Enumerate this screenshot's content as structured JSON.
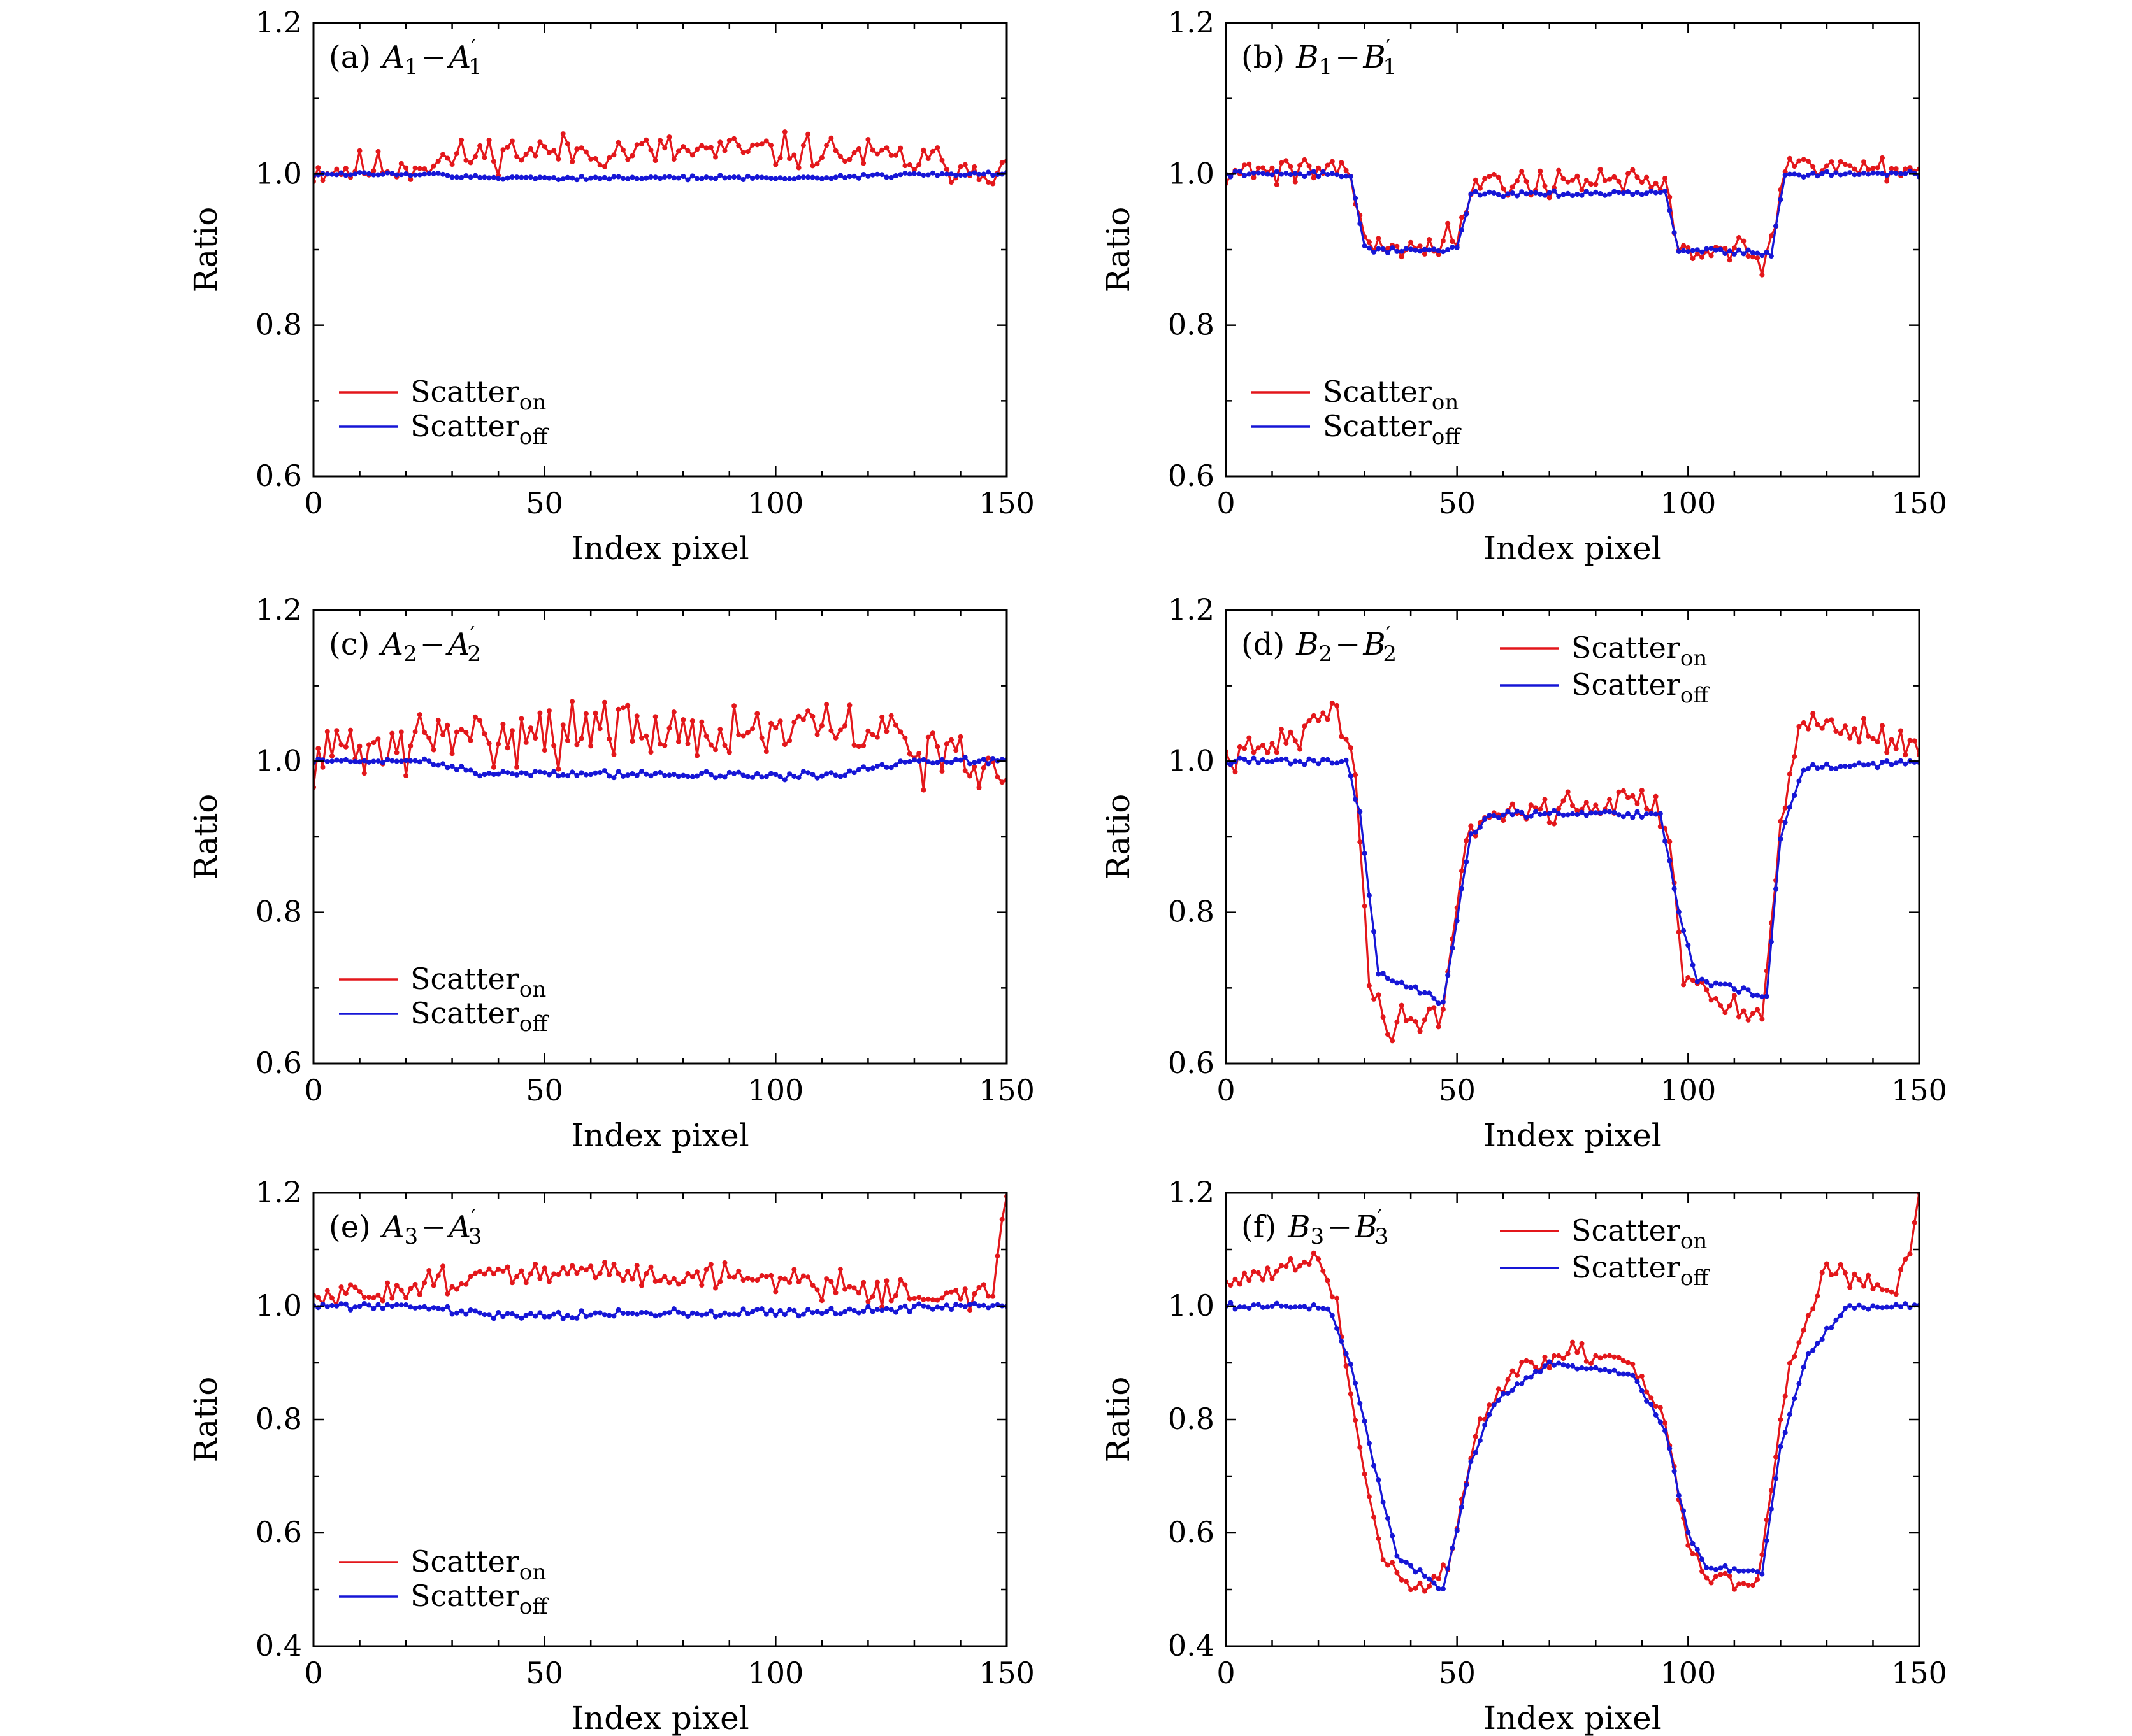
{
  "colors": {
    "scatter_on": "#e3171b",
    "scatter_off": "#1616d6",
    "axis": "#000000"
  },
  "legend": {
    "on_base": "Scatter",
    "on_sub": "on",
    "off_base": "Scatter",
    "off_sub": "off"
  },
  "chart_data": [
    {
      "id": "a",
      "type": "line",
      "label": "(a)",
      "pair": [
        "A",
        "1"
      ],
      "legend_position": "bottom-left",
      "xlabel": "Index pixel",
      "ylabel": "Ratio",
      "xlim": [
        0,
        150
      ],
      "ylim": [
        0.6,
        1.2
      ],
      "xticks": [
        0,
        50,
        100,
        150
      ],
      "yticks": [
        "0.6",
        "0.8",
        "1.0",
        "1.2"
      ],
      "series": [
        {
          "name": "Scatter_on",
          "kind": "noisy",
          "breakpoints": [
            [
              0,
              1.005
            ],
            [
              20,
              1.01
            ],
            [
              40,
              1.03
            ],
            [
              70,
              1.03
            ],
            [
              110,
              1.03
            ],
            [
              150,
              1.005
            ]
          ],
          "noise": 0.035,
          "seed": 11
        },
        {
          "name": "Scatter_off",
          "kind": "noisy",
          "breakpoints": [
            [
              0,
              1.0
            ],
            [
              25,
              1.0
            ],
            [
              35,
              0.995
            ],
            [
              110,
              0.995
            ],
            [
              130,
              1.0
            ],
            [
              150,
              1.0
            ]
          ],
          "noise": 0.004,
          "seed": 12
        }
      ]
    },
    {
      "id": "b",
      "type": "line",
      "label": "(b)",
      "pair": [
        "B",
        "1"
      ],
      "legend_position": "bottom-left",
      "xlabel": "Index pixel",
      "ylabel": "Ratio",
      "xlim": [
        0,
        150
      ],
      "ylim": [
        0.6,
        1.2
      ],
      "xticks": [
        0,
        50,
        100,
        150
      ],
      "yticks": [
        "0.6",
        "0.8",
        "1.0",
        "1.2"
      ],
      "series": [
        {
          "name": "Scatter_on",
          "kind": "noisy",
          "breakpoints": [
            [
              0,
              1.005
            ],
            [
              27,
              1.01
            ],
            [
              30,
              0.905
            ],
            [
              50,
              0.91
            ],
            [
              53,
              0.99
            ],
            [
              95,
              0.99
            ],
            [
              98,
              0.9
            ],
            [
              118,
              0.89
            ],
            [
              121,
              1.01
            ],
            [
              150,
              1.01
            ]
          ],
          "noise": 0.03,
          "seed": 21
        },
        {
          "name": "Scatter_off",
          "kind": "noisy",
          "breakpoints": [
            [
              0,
              1.0
            ],
            [
              27,
              1.0
            ],
            [
              30,
              0.9
            ],
            [
              50,
              0.9
            ],
            [
              53,
              0.975
            ],
            [
              95,
              0.975
            ],
            [
              98,
              0.9
            ],
            [
              118,
              0.895
            ],
            [
              121,
              1.0
            ],
            [
              150,
              1.0
            ]
          ],
          "noise": 0.006,
          "seed": 22
        }
      ]
    },
    {
      "id": "c",
      "type": "line",
      "label": "(c)",
      "pair": [
        "A",
        "2"
      ],
      "legend_position": "bottom-left",
      "xlabel": "Index pixel",
      "ylabel": "Ratio",
      "xlim": [
        0,
        150
      ],
      "ylim": [
        0.6,
        1.2
      ],
      "xticks": [
        0,
        50,
        100,
        150
      ],
      "yticks": [
        "0.6",
        "0.8",
        "1.0",
        "1.2"
      ],
      "series": [
        {
          "name": "Scatter_on",
          "kind": "noisy",
          "breakpoints": [
            [
              0,
              1.01
            ],
            [
              20,
              1.02
            ],
            [
              40,
              1.04
            ],
            [
              80,
              1.04
            ],
            [
              120,
              1.04
            ],
            [
              140,
              1.0
            ],
            [
              150,
              0.97
            ]
          ],
          "noise": 0.06,
          "seed": 31
        },
        {
          "name": "Scatter_off",
          "kind": "noisy",
          "breakpoints": [
            [
              0,
              1.0
            ],
            [
              25,
              1.0
            ],
            [
              35,
              0.985
            ],
            [
              110,
              0.98
            ],
            [
              130,
              1.0
            ],
            [
              150,
              1.0
            ]
          ],
          "noise": 0.007,
          "seed": 32
        }
      ]
    },
    {
      "id": "d",
      "type": "line",
      "label": "(d)",
      "pair": [
        "B",
        "2"
      ],
      "legend_position": "top-center",
      "xlabel": "Index pixel",
      "ylabel": "Ratio",
      "xlim": [
        0,
        150
      ],
      "ylim": [
        0.6,
        1.2
      ],
      "xticks": [
        0,
        50,
        100,
        150
      ],
      "yticks": [
        "0.6",
        "0.8",
        "1.0",
        "1.2"
      ],
      "series": [
        {
          "name": "Scatter_on",
          "kind": "noisy",
          "breakpoints": [
            [
              0,
              1.0
            ],
            [
              15,
              1.03
            ],
            [
              24,
              1.07
            ],
            [
              28,
              1.0
            ],
            [
              31,
              0.7
            ],
            [
              35,
              0.65
            ],
            [
              47,
              0.67
            ],
            [
              52,
              0.9
            ],
            [
              56,
              0.93
            ],
            [
              92,
              0.95
            ],
            [
              96,
              0.9
            ],
            [
              99,
              0.72
            ],
            [
              105,
              0.68
            ],
            [
              116,
              0.66
            ],
            [
              120,
              0.93
            ],
            [
              125,
              1.05
            ],
            [
              130,
              1.05
            ],
            [
              150,
              1.02
            ]
          ],
          "noise": 0.03,
          "seed": 41
        },
        {
          "name": "Scatter_off",
          "kind": "noisy",
          "breakpoints": [
            [
              0,
              1.0
            ],
            [
              26,
              1.0
            ],
            [
              29,
              0.93
            ],
            [
              33,
              0.72
            ],
            [
              47,
              0.68
            ],
            [
              53,
              0.9
            ],
            [
              57,
              0.93
            ],
            [
              94,
              0.93
            ],
            [
              98,
              0.8
            ],
            [
              102,
              0.71
            ],
            [
              117,
              0.69
            ],
            [
              120,
              0.9
            ],
            [
              125,
              0.99
            ],
            [
              150,
              1.0
            ]
          ],
          "noise": 0.007,
          "seed": 42
        }
      ]
    },
    {
      "id": "e",
      "type": "line",
      "label": "(e)",
      "pair": [
        "A",
        "3"
      ],
      "legend_position": "bottom-left",
      "xlabel": "Index pixel",
      "ylabel": "Ratio",
      "xlim": [
        0,
        150
      ],
      "ylim": [
        0.4,
        1.2
      ],
      "xticks": [
        0,
        50,
        100,
        150
      ],
      "yticks": [
        "0.4",
        "0.6",
        "0.8",
        "1.0",
        "1.2"
      ],
      "series": [
        {
          "name": "Scatter_on",
          "kind": "noisy",
          "breakpoints": [
            [
              0,
              1.01
            ],
            [
              10,
              1.02
            ],
            [
              30,
              1.05
            ],
            [
              60,
              1.06
            ],
            [
              100,
              1.05
            ],
            [
              130,
              1.02
            ],
            [
              147,
              1.02
            ],
            [
              150,
              1.2
            ]
          ],
          "noise": 0.035,
          "seed": 51
        },
        {
          "name": "Scatter_off",
          "kind": "noisy",
          "breakpoints": [
            [
              0,
              1.0
            ],
            [
              20,
              1.0
            ],
            [
              40,
              0.985
            ],
            [
              110,
              0.99
            ],
            [
              140,
              1.0
            ],
            [
              150,
              1.0
            ]
          ],
          "noise": 0.01,
          "seed": 52
        }
      ]
    },
    {
      "id": "f",
      "type": "line",
      "label": "(f)",
      "pair": [
        "B",
        "3"
      ],
      "legend_position": "top-center",
      "xlabel": "Index pixel",
      "ylabel": "Ratio",
      "xlim": [
        0,
        150
      ],
      "ylim": [
        0.4,
        1.2
      ],
      "xticks": [
        0,
        50,
        100,
        150
      ],
      "yticks": [
        "0.4",
        "0.6",
        "0.8",
        "1.0",
        "1.2"
      ],
      "series": [
        {
          "name": "Scatter_on",
          "kind": "noisy",
          "breakpoints": [
            [
              0,
              1.04
            ],
            [
              20,
              1.08
            ],
            [
              24,
              1.0
            ],
            [
              30,
              0.7
            ],
            [
              34,
              0.55
            ],
            [
              40,
              0.5
            ],
            [
              48,
              0.53
            ],
            [
              55,
              0.8
            ],
            [
              62,
              0.88
            ],
            [
              75,
              0.92
            ],
            [
              88,
              0.9
            ],
            [
              95,
              0.8
            ],
            [
              100,
              0.58
            ],
            [
              104,
              0.52
            ],
            [
              115,
              0.5
            ],
            [
              118,
              0.68
            ],
            [
              122,
              0.9
            ],
            [
              130,
              1.07
            ],
            [
              145,
              1.02
            ],
            [
              148,
              1.1
            ],
            [
              150,
              1.2
            ]
          ],
          "noise": 0.025,
          "seed": 61
        },
        {
          "name": "Scatter_off",
          "kind": "noisy",
          "breakpoints": [
            [
              0,
              1.0
            ],
            [
              22,
              1.0
            ],
            [
              27,
              0.9
            ],
            [
              32,
              0.72
            ],
            [
              37,
              0.56
            ],
            [
              47,
              0.5
            ],
            [
              53,
              0.72
            ],
            [
              58,
              0.83
            ],
            [
              70,
              0.9
            ],
            [
              88,
              0.88
            ],
            [
              95,
              0.78
            ],
            [
              100,
              0.6
            ],
            [
              104,
              0.54
            ],
            [
              116,
              0.53
            ],
            [
              120,
              0.75
            ],
            [
              126,
              0.92
            ],
            [
              135,
              1.0
            ],
            [
              150,
              1.0
            ]
          ],
          "noise": 0.008,
          "seed": 62
        }
      ]
    }
  ]
}
